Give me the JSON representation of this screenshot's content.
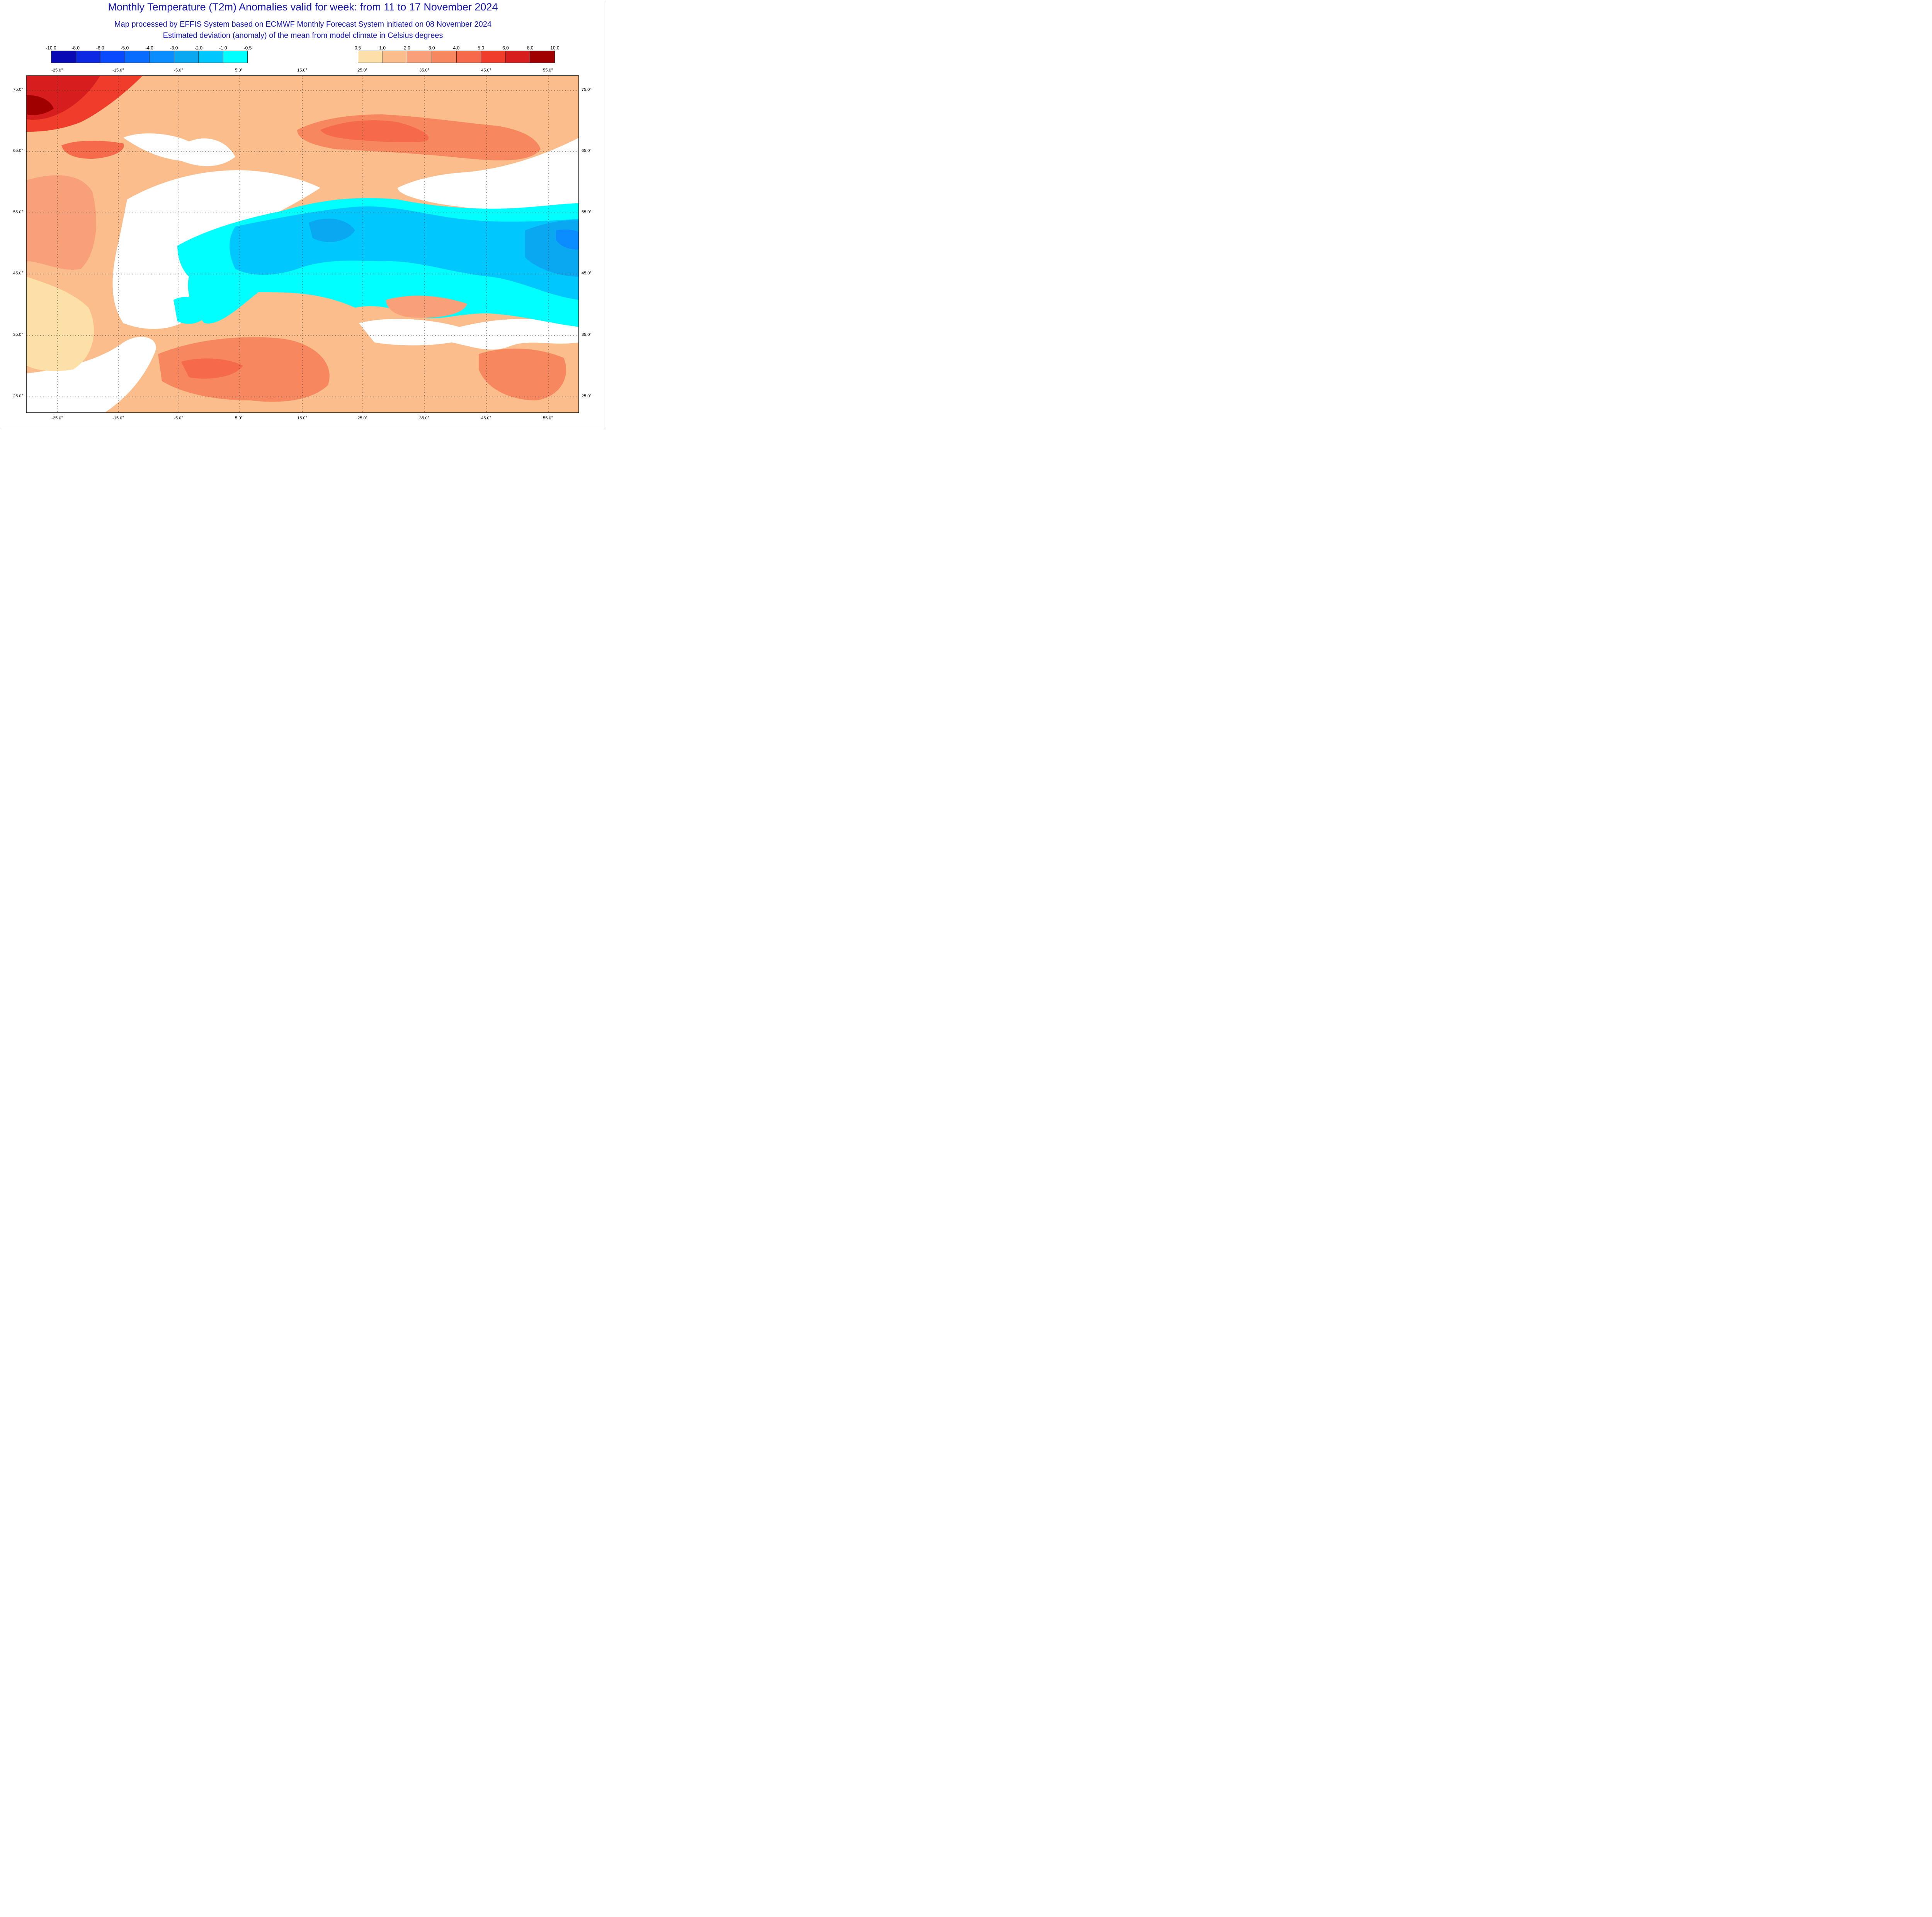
{
  "title": "Monthly Temperature (T2m) Anomalies valid for week: from 11 to 17 November 2024",
  "subtitle1": "Map processed by EFFIS System based on ECMWF Monthly Forecast System initiated on 08 November 2024",
  "subtitle2": "Estimated deviation (anomaly) of the mean from model climate in Celsius degrees",
  "legend_cold": {
    "ticks": [
      "-10.0",
      "-8.0",
      "-6.0",
      "-5.0",
      "-4.0",
      "-3.0",
      "-2.0",
      "-1.0",
      "-0.5"
    ],
    "colors": [
      "#0a0ab4",
      "#0c28e0",
      "#0a4aff",
      "#0a6cff",
      "#0a8cff",
      "#0aa8f0",
      "#00c8ff",
      "#00ffff"
    ]
  },
  "legend_warm": {
    "ticks": [
      "0.5",
      "1.0",
      "2.0",
      "3.0",
      "4.0",
      "5.0",
      "6.0",
      "8.0",
      "10.0"
    ],
    "colors": [
      "#fde0a8",
      "#fbbd8c",
      "#f8a07a",
      "#f7875f",
      "#f56a4a",
      "#f03c2a",
      "#d71e1e",
      "#a00000"
    ]
  },
  "lon_labels": [
    "-25.0°",
    "-15.0°",
    "-5.0°",
    "5.0°",
    "15.0°",
    "25.0°",
    "35.0°",
    "45.0°",
    "55.0°"
  ],
  "lat_labels": [
    "75.0°",
    "65.0°",
    "55.0°",
    "45.0°",
    "35.0°",
    "25.0°"
  ]
}
